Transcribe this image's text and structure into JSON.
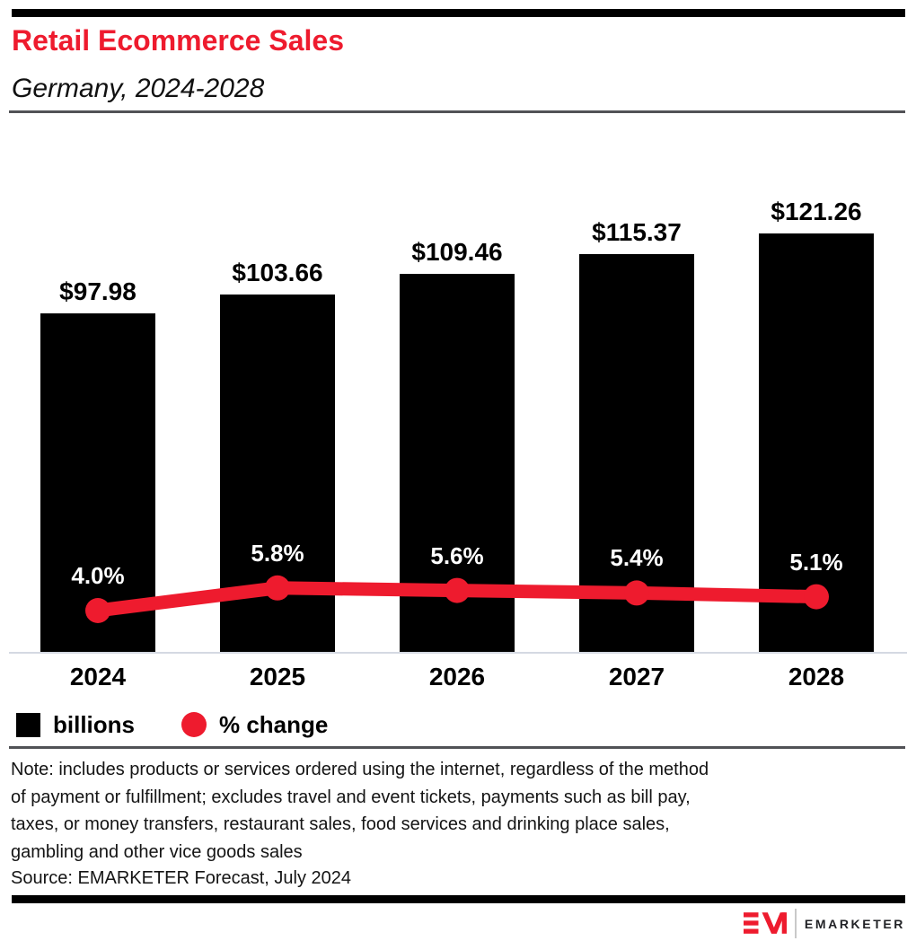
{
  "header": {
    "title": "Retail Ecommerce Sales",
    "subtitle": "Germany, 2024-2028"
  },
  "chart_data": {
    "type": "bar",
    "title": "Retail Ecommerce Sales",
    "subtitle": "Germany, 2024-2028",
    "categories": [
      "2024",
      "2025",
      "2026",
      "2027",
      "2028"
    ],
    "series": [
      {
        "name": "billions",
        "chart": "bar",
        "values": [
          97.98,
          103.66,
          109.46,
          115.37,
          121.26
        ],
        "labels": [
          "$97.98",
          "$103.66",
          "$109.46",
          "$115.37",
          "$121.26"
        ],
        "color": "#000000"
      },
      {
        "name": "% change",
        "chart": "line",
        "values": [
          4.0,
          5.8,
          5.6,
          5.4,
          5.1
        ],
        "labels": [
          "4.0%",
          "5.8%",
          "5.6%",
          "5.4%",
          "5.1%"
        ],
        "color": "#ee1b2e"
      }
    ],
    "xlabel": "",
    "ylabel": "",
    "ylim": [
      0,
      121.26
    ],
    "grid": false,
    "legend_position": "bottom-left"
  },
  "legend": {
    "bar_label": "billions",
    "line_label": "% change"
  },
  "note": {
    "lines": [
      "Note: includes products or services ordered using the internet, regardless of the method",
      "of payment or fulfillment; excludes travel and event tickets, payments such as bill pay,",
      "taxes, or money transfers, restaurant sales, food services and drinking place sales,",
      "gambling and other vice goods sales"
    ]
  },
  "source": {
    "text": "Source: EMARKETER Forecast, July 2024"
  },
  "logo": {
    "wordmark": "EMARKETER"
  },
  "colors": {
    "accent_red": "#ee1b2e",
    "bar_black": "#000000",
    "axis_line": "#d4d9e2",
    "rule_dark": "#515256",
    "pct_label_text": "#ffffff"
  }
}
